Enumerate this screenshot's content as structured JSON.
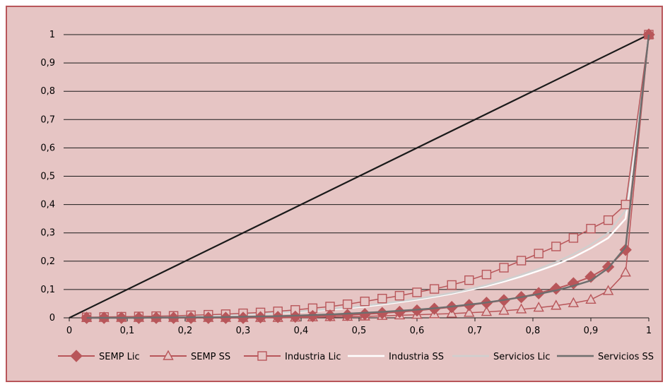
{
  "chart_data": {
    "type": "line",
    "title": "",
    "xlabel": "",
    "ylabel": "",
    "xlim": [
      0,
      1
    ],
    "ylim": [
      0,
      1
    ],
    "grid": "horizontal",
    "legend_position": "bottom",
    "x_ticks": [
      "0",
      "0,1",
      "0,2",
      "0,3",
      "0,4",
      "0,5",
      "0,6",
      "0,7",
      "0,8",
      "0,9",
      "1"
    ],
    "y_ticks": [
      "0",
      "0,1",
      "0,2",
      "0,3",
      "0,4",
      "0,5",
      "0,6",
      "0,7",
      "0,8",
      "0,9",
      "1"
    ],
    "equality_line": {
      "x": [
        0,
        1
      ],
      "y": [
        0,
        1
      ],
      "color": "#1a1a1a"
    },
    "x": [
      0.03,
      0.06,
      0.09,
      0.12,
      0.15,
      0.18,
      0.21,
      0.24,
      0.27,
      0.3,
      0.33,
      0.36,
      0.39,
      0.42,
      0.45,
      0.48,
      0.51,
      0.54,
      0.57,
      0.6,
      0.63,
      0.66,
      0.69,
      0.72,
      0.75,
      0.78,
      0.81,
      0.84,
      0.87,
      0.9,
      0.93,
      0.96,
      1.0
    ],
    "series": [
      {
        "name": "SEMP Lic",
        "marker": "diamond",
        "color": "#b8565a",
        "values": [
          0,
          0,
          0,
          0,
          0,
          0,
          0,
          0,
          0,
          0,
          0.002,
          0.003,
          0.004,
          0.006,
          0.008,
          0.01,
          0.013,
          0.017,
          0.021,
          0.026,
          0.032,
          0.038,
          0.045,
          0.053,
          0.062,
          0.073,
          0.087,
          0.103,
          0.122,
          0.145,
          0.18,
          0.24,
          1.0
        ]
      },
      {
        "name": "SEMP SS",
        "marker": "triangle",
        "color": "#b8565a",
        "values": [
          0,
          0,
          0,
          0,
          0,
          0,
          0,
          0,
          0,
          0,
          0,
          0,
          0.001,
          0.002,
          0.003,
          0.004,
          0.005,
          0.007,
          0.009,
          0.011,
          0.013,
          0.015,
          0.018,
          0.021,
          0.025,
          0.03,
          0.036,
          0.043,
          0.052,
          0.064,
          0.095,
          0.16,
          1.0
        ]
      },
      {
        "name": "Industria Lic",
        "marker": "square",
        "color": "#b8565a",
        "values": [
          0.002,
          0.003,
          0.004,
          0.005,
          0.006,
          0.007,
          0.009,
          0.011,
          0.013,
          0.016,
          0.019,
          0.023,
          0.028,
          0.034,
          0.04,
          0.048,
          0.058,
          0.068,
          0.078,
          0.09,
          0.102,
          0.116,
          0.133,
          0.153,
          0.177,
          0.202,
          0.227,
          0.252,
          0.282,
          0.315,
          0.345,
          0.4,
          1.0
        ]
      },
      {
        "name": "Industria SS",
        "marker": "none",
        "color": "#ffffff",
        "values": [
          0.001,
          0.002,
          0.003,
          0.004,
          0.005,
          0.006,
          0.007,
          0.008,
          0.01,
          0.012,
          0.014,
          0.017,
          0.02,
          0.024,
          0.029,
          0.034,
          0.04,
          0.047,
          0.055,
          0.064,
          0.074,
          0.085,
          0.098,
          0.112,
          0.128,
          0.146,
          0.166,
          0.188,
          0.214,
          0.246,
          0.282,
          0.35,
          1.0
        ]
      },
      {
        "name": "Servicios Lic",
        "marker": "none",
        "color": "#cfcfcf",
        "values": [
          0.001,
          0.002,
          0.003,
          0.004,
          0.005,
          0.006,
          0.007,
          0.009,
          0.011,
          0.013,
          0.015,
          0.018,
          0.022,
          0.026,
          0.031,
          0.037,
          0.043,
          0.05,
          0.058,
          0.067,
          0.077,
          0.088,
          0.101,
          0.116,
          0.133,
          0.152,
          0.173,
          0.197,
          0.225,
          0.258,
          0.3,
          0.38,
          1.0
        ]
      },
      {
        "name": "Servicios SS",
        "marker": "none",
        "color": "#6e6e6e",
        "values": [
          0,
          0,
          0,
          0,
          0.001,
          0.001,
          0.002,
          0.002,
          0.003,
          0.004,
          0.005,
          0.006,
          0.008,
          0.01,
          0.012,
          0.015,
          0.018,
          0.021,
          0.025,
          0.029,
          0.034,
          0.04,
          0.047,
          0.054,
          0.063,
          0.073,
          0.084,
          0.097,
          0.113,
          0.132,
          0.175,
          0.25,
          1.0
        ]
      }
    ]
  }
}
